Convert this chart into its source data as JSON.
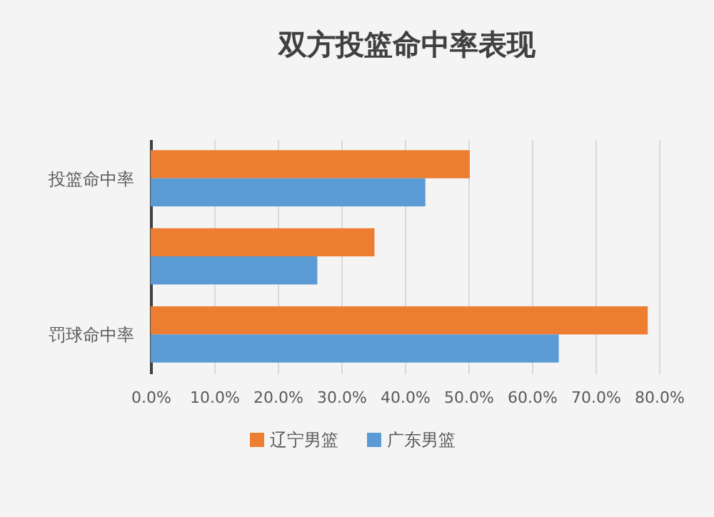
{
  "chart_data": {
    "type": "bar",
    "orientation": "horizontal",
    "title": "双方投篮命中率表现",
    "categories": [
      "投篮命中率",
      null,
      "罚球命中率"
    ],
    "series": [
      {
        "name": "辽宁男篮",
        "color": "#ed7d31",
        "values": [
          50,
          35,
          78
        ]
      },
      {
        "name": "广东男篮",
        "color": "#5b9bd5",
        "values": [
          43,
          26,
          64
        ]
      }
    ],
    "xlim": [
      0,
      80
    ],
    "xticks": [
      {
        "value": 0,
        "label": "0.0%"
      },
      {
        "value": 10,
        "label": "10.0%"
      },
      {
        "value": 20,
        "label": "20.0%"
      },
      {
        "value": 30,
        "label": "30.0%"
      },
      {
        "value": 40,
        "label": "40.0%"
      },
      {
        "value": 50,
        "label": "50.0%"
      },
      {
        "value": 60,
        "label": "60.0%"
      },
      {
        "value": 70,
        "label": "70.0%"
      },
      {
        "value": 80,
        "label": "80.0%"
      }
    ],
    "grid": "x",
    "legend": "bottom"
  }
}
